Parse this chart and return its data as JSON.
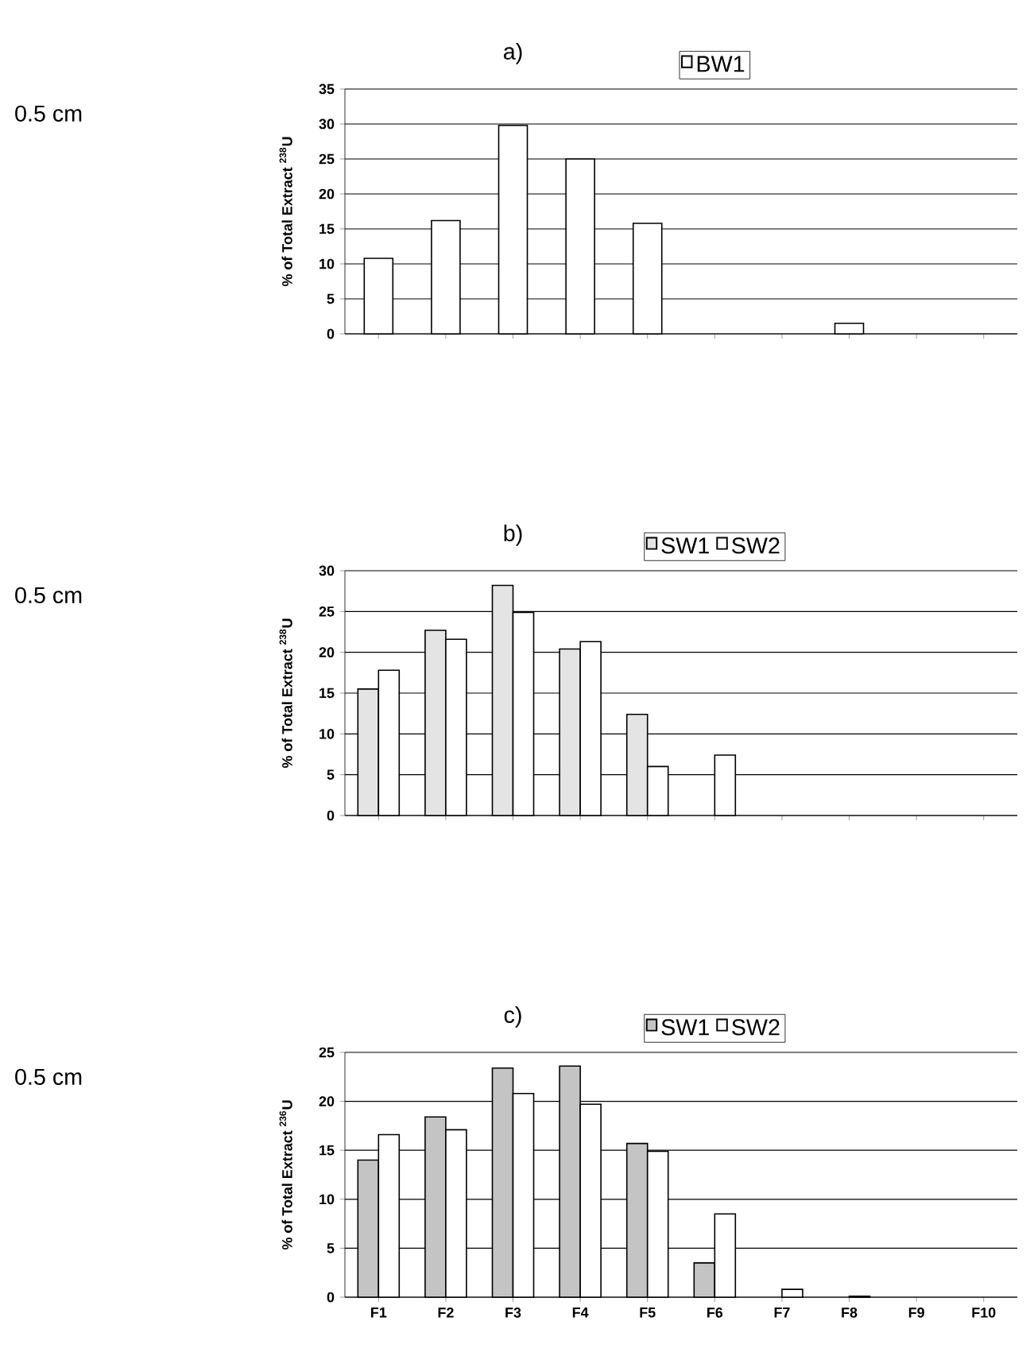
{
  "chart_data": [
    {
      "type": "bar",
      "title": "a)",
      "ylabel": "% of Total Extract $^{238}$U",
      "annotations": [
        "0.5 cm"
      ],
      "categories": [
        null,
        null,
        null,
        null,
        null,
        null,
        null,
        null,
        null,
        null
      ],
      "series": [
        {
          "name": "BW1",
          "color": "#ffffff",
          "values": [
            10.8,
            16.2,
            29.8,
            25.0,
            15.8,
            null,
            null,
            1.5,
            null,
            null
          ]
        }
      ],
      "ylim": [
        0,
        35
      ],
      "yticks": [
        0,
        5,
        10,
        15,
        20,
        25,
        30,
        35
      ],
      "grid": "y",
      "legend": "top",
      "tick_labels": "y"
    },
    {
      "type": "bar",
      "title": "b)",
      "ylabel": "% of Total Extract $^{238}$U",
      "annotations": [
        "0.5 cm"
      ],
      "categories": [
        null,
        null,
        null,
        null,
        null,
        null,
        null,
        null,
        null,
        null
      ],
      "series": [
        {
          "name": "SW1",
          "color": "#e4e4e4",
          "values": [
            15.5,
            22.7,
            28.2,
            20.4,
            12.4,
            null,
            null,
            null,
            null,
            null
          ]
        },
        {
          "name": "SW2",
          "color": "#ffffff",
          "values": [
            17.8,
            21.6,
            24.9,
            21.3,
            6.0,
            7.4,
            null,
            null,
            null,
            null
          ]
        }
      ],
      "ylim": [
        0,
        30
      ],
      "yticks": [
        0,
        5,
        10,
        15,
        20,
        25,
        30
      ],
      "grid": "y",
      "legend": "top",
      "tick_labels": "y"
    },
    {
      "type": "bar",
      "title": "c)",
      "ylabel": "% of Total Extract $^{236}$U",
      "annotations": [
        "0.5 cm"
      ],
      "categories": [
        "F1",
        "F2",
        "F3",
        "F4",
        "F5",
        "F6",
        "F7",
        "F8",
        "F9",
        "F10"
      ],
      "series": [
        {
          "name": "SW1",
          "color": "#c4c4c4",
          "values": [
            14.0,
            18.4,
            23.4,
            23.6,
            15.7,
            3.5,
            null,
            null,
            null,
            null
          ]
        },
        {
          "name": "SW2",
          "color": "#ffffff",
          "values": [
            16.6,
            17.1,
            20.8,
            19.7,
            14.9,
            8.5,
            0.8,
            0.1,
            null,
            null
          ]
        }
      ],
      "ylim": [
        0,
        25
      ],
      "yticks": [
        0,
        5,
        10,
        15,
        20,
        25
      ],
      "grid": "y",
      "legend": "top"
    }
  ]
}
